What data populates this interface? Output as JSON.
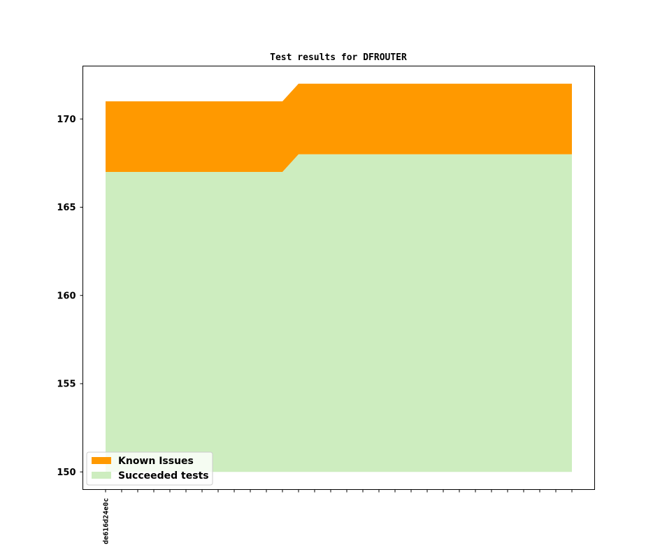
{
  "chart_data": {
    "type": "area",
    "title": "Test results for DFROUTER",
    "xlabel": "",
    "ylabel": "",
    "x_tick_labels": [
      "de616d24e0c"
    ],
    "x_count": 30,
    "ylim": [
      149,
      173
    ],
    "yticks": [
      150,
      155,
      160,
      165,
      170
    ],
    "grid": false,
    "legend_position": "lower-left",
    "series": [
      {
        "name": "Succeeded tests",
        "color": "#cdedbf",
        "values": [
          167,
          167,
          167,
          167,
          167,
          167,
          167,
          167,
          167,
          167,
          167,
          167,
          168,
          168,
          168,
          168,
          168,
          168,
          168,
          168,
          168,
          168,
          168,
          168,
          168,
          168,
          168,
          168,
          168,
          168
        ]
      },
      {
        "name": "Known Issues",
        "color": "#ff9900",
        "values": [
          4,
          4,
          4,
          4,
          4,
          4,
          4,
          4,
          4,
          4,
          4,
          4,
          4,
          4,
          4,
          4,
          4,
          4,
          4,
          4,
          4,
          4,
          4,
          4,
          4,
          4,
          4,
          4,
          4,
          4
        ]
      }
    ],
    "baseline": 150,
    "legend": [
      {
        "label": "Known Issues",
        "color": "#ff9900"
      },
      {
        "label": "Succeeded tests",
        "color": "#cdedbf"
      }
    ]
  }
}
